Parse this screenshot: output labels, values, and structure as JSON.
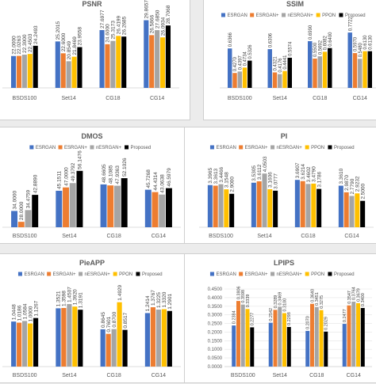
{
  "colors": {
    "ESRGAN": "#4472c4",
    "ESRGAN+": "#ed7d31",
    "nESRGAN+": "#a5a5a5",
    "PPON": "#ffc000",
    "Proposed": "#000000"
  },
  "chart_data": [
    {
      "type": "bar",
      "title": "PSNR",
      "legend": "none",
      "categories": [
        "BSDS100",
        "Set14",
        "CG18",
        "CG14"
      ],
      "ylim": [
        15,
        31
      ],
      "show_yaxis": false,
      "series": [
        {
          "name": "ESRGAN",
          "values": [
            22.0,
            25.2015,
            27.6977,
            29.8657
          ]
        },
        {
          "name": "ESRGAN+",
          "values": [
            22.0263,
            22.6,
            24.6,
            26.5866
          ]
        },
        {
          "name": "nESRGAN+",
          "values": [
            22.3,
            20.8549,
            25.3173,
            27.685
          ]
        },
        {
          "name": "PPON",
          "values": [
            22.4503,
            21.8469,
            26.4199,
            26.0934
          ]
        },
        {
          "name": "Proposed",
          "values": [
            24.2493,
            23.9558,
            26.2685,
            28.7068
          ]
        }
      ]
    },
    {
      "type": "bar",
      "title": "SSIM",
      "legend": "top",
      "categories": [
        "BSDS100",
        "Set14",
        "CG18",
        "CG14"
      ],
      "ylim": [
        0.3,
        0.8
      ],
      "show_yaxis": false,
      "series": [
        {
          "name": "ESRGAN",
          "values": [
            0.6366,
            0.6306,
            0.699,
            0.7722
          ]
        },
        {
          "name": "ESRGAN+",
          "values": [
            0.427,
            0.4321,
            0.55,
            0.597
          ]
        },
        {
          "name": "nESRGAN+",
          "values": [
            0.4397,
            0.4176,
            0.5692,
            0.548
          ]
        },
        {
          "name": "PPON",
          "values": [
            0.4734,
            0.4441,
            0.6082,
            0.613
          ]
        },
        {
          "name": "Proposed",
          "values": [
            0.5326,
            0.5574,
            0.64,
            0.613
          ]
        }
      ]
    },
    {
      "type": "bar",
      "title": "DMOS",
      "legend": "top",
      "categories": [
        "BSDS100",
        "Set14",
        "CG18",
        "CG14"
      ],
      "ylim": [
        25,
        60
      ],
      "show_yaxis": false,
      "series": [
        {
          "name": "ESRGAN",
          "values": [
            34.0,
            45.1511,
            48.6605,
            45.7268
          ]
        },
        {
          "name": "ESRGAN+",
          "values": [
            28.0,
            47.0,
            48.1085,
            44.4314
          ]
        },
        {
          "name": "nESRGAN+",
          "values": [
            34.4759,
            49.3792,
            47.9363,
            43.0638
          ]
        },
        {
          "name": "Proposed",
          "values": [
            42.889,
            56.1476,
            52.1026,
            46.5979
          ]
        }
      ]
    },
    {
      "type": "bar",
      "title": "PI",
      "legend": "top",
      "categories": [
        "BSDS100",
        "Set14",
        "CG18",
        "CG14"
      ],
      "ylim": [
        1,
        4.6
      ],
      "show_yaxis": false,
      "series": [
        {
          "name": "ESRGAN",
          "values": [
            3.3965,
            3.5305,
            3.6907,
            3.361
          ]
        },
        {
          "name": "ESRGAN+",
          "values": [
            3.3613,
            3.6112,
            3.6214,
            2.987
          ]
        },
        {
          "name": "nESRGAN+",
          "values": [
            3.4466,
            4.0503,
            3.4602,
            2.779
          ]
        },
        {
          "name": "PPON",
          "values": [
            3.1548,
            3.1606,
            3.479,
            2.9232
          ]
        },
        {
          "name": "Proposed",
          "values": [
            2.9,
            3.0777,
            3.1786,
            2.5
          ]
        }
      ]
    },
    {
      "type": "bar",
      "title": "PieAPP",
      "legend": "top",
      "categories": [
        "BSDS100",
        "Set14",
        "CG18",
        "CG14"
      ],
      "ylim": [
        0,
        1.8
      ],
      "show_yaxis": false,
      "series": [
        {
          "name": "ESRGAN",
          "values": [
            1.0448,
            1.3521,
            0.8645,
            1.2414
          ]
        },
        {
          "name": "ESRGAN+",
          "values": [
            1.0186,
            1.3598,
            0.7601,
            1.3767
          ]
        },
        {
          "name": "nESRGAN+",
          "values": [
            1.0584,
            1.4507,
            0.87,
            1.3225
          ]
        },
        {
          "name": "PPON",
          "values": [
            1.0,
            1.392,
            1.4929,
            1.332
          ]
        },
        {
          "name": "Proposed",
          "values": [
            1.1267,
            1.3191,
            0.8517,
            1.2901
          ]
        }
      ]
    },
    {
      "type": "bar",
      "title": "LPIPS",
      "legend": "top",
      "categories": [
        "BSDS100",
        "Set14",
        "CG18",
        "CG14"
      ],
      "ylim": [
        0,
        0.45
      ],
      "show_yaxis": true,
      "yticks": [
        "0.0000",
        "0.0500",
        "0.1000",
        "0.1500",
        "0.2000",
        "0.2500",
        "0.3000",
        "0.3500",
        "0.4000",
        "0.4500"
      ],
      "series": [
        {
          "name": "ESRGAN",
          "values": [
            0.2384,
            0.2542,
            0.207,
            0.2477
          ]
        },
        {
          "name": "ESRGAN+",
          "values": [
            0.3806,
            0.3289,
            0.364,
            0.3547
          ]
        },
        {
          "name": "nESRGAN+",
          "values": [
            0.3598,
            0.3469,
            0.3451,
            0.3764
          ]
        },
        {
          "name": "PPON",
          "values": [
            0.3339,
            0.31,
            0.3275,
            0.3679
          ]
        },
        {
          "name": "Proposed",
          "values": [
            0.2277,
            0.2298,
            0.2029,
            0.34
          ]
        }
      ]
    }
  ]
}
